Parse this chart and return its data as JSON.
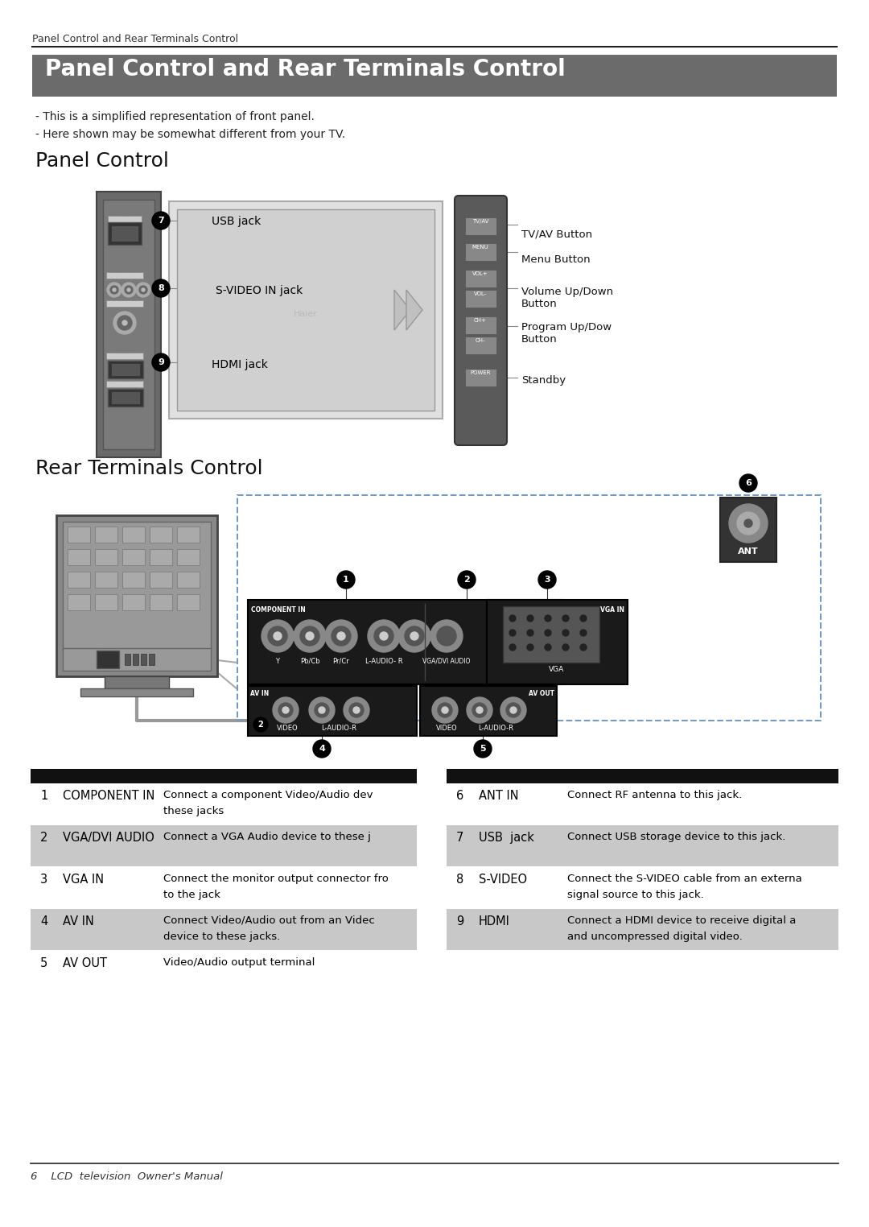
{
  "page_title_header": "Panel Control and Rear Terminals Control",
  "header_bg": "#6b6b6b",
  "header_text_color": "#ffffff",
  "section1_title": "Panel Control",
  "section2_title": "Rear Terminals Control",
  "breadcrumb": "Panel Control and Rear Terminals Control",
  "footer_text": "6    LCD  television  Owner's Manual",
  "bg_color": "#ffffff",
  "panel_notes": [
    "- This is a simplified representation of front panel.",
    "- Here shown may be somewhat different from your TV."
  ],
  "table_data": [
    {
      "num": "1",
      "name": "COMPONENT IN",
      "desc": "Connect a component Video/Audio dev\nthese jacks",
      "highlight": false
    },
    {
      "num": "2",
      "name": "VGA/DVI AUDIO",
      "desc": "Connect a VGA Audio device to these j",
      "highlight": true
    },
    {
      "num": "3",
      "name": "VGA IN",
      "desc": "Connect the monitor output connector fro\nto the jack",
      "highlight": false
    },
    {
      "num": "4",
      "name": "AV IN",
      "desc": "Connect Video/Audio out from an Videc\ndevice to these jacks.",
      "highlight": true
    },
    {
      "num": "5",
      "name": "AV OUT",
      "desc": "Video/Audio output terminal",
      "highlight": false
    }
  ],
  "table_data_right": [
    {
      "num": "6",
      "name": "ANT IN",
      "desc": "Connect RF antenna to this jack.",
      "highlight": false
    },
    {
      "num": "7",
      "name": "USB  jack",
      "desc": "Connect USB storage device to this jack.",
      "highlight": true
    },
    {
      "num": "8",
      "name": "S-VIDEO",
      "desc": "Connect the S-VIDEO cable from an externa\nsignal source to this jack.",
      "highlight": false
    },
    {
      "num": "9",
      "name": "HDMI",
      "desc": "Connect a HDMI device to receive digital a\nand uncompressed digital video.",
      "highlight": true
    }
  ]
}
